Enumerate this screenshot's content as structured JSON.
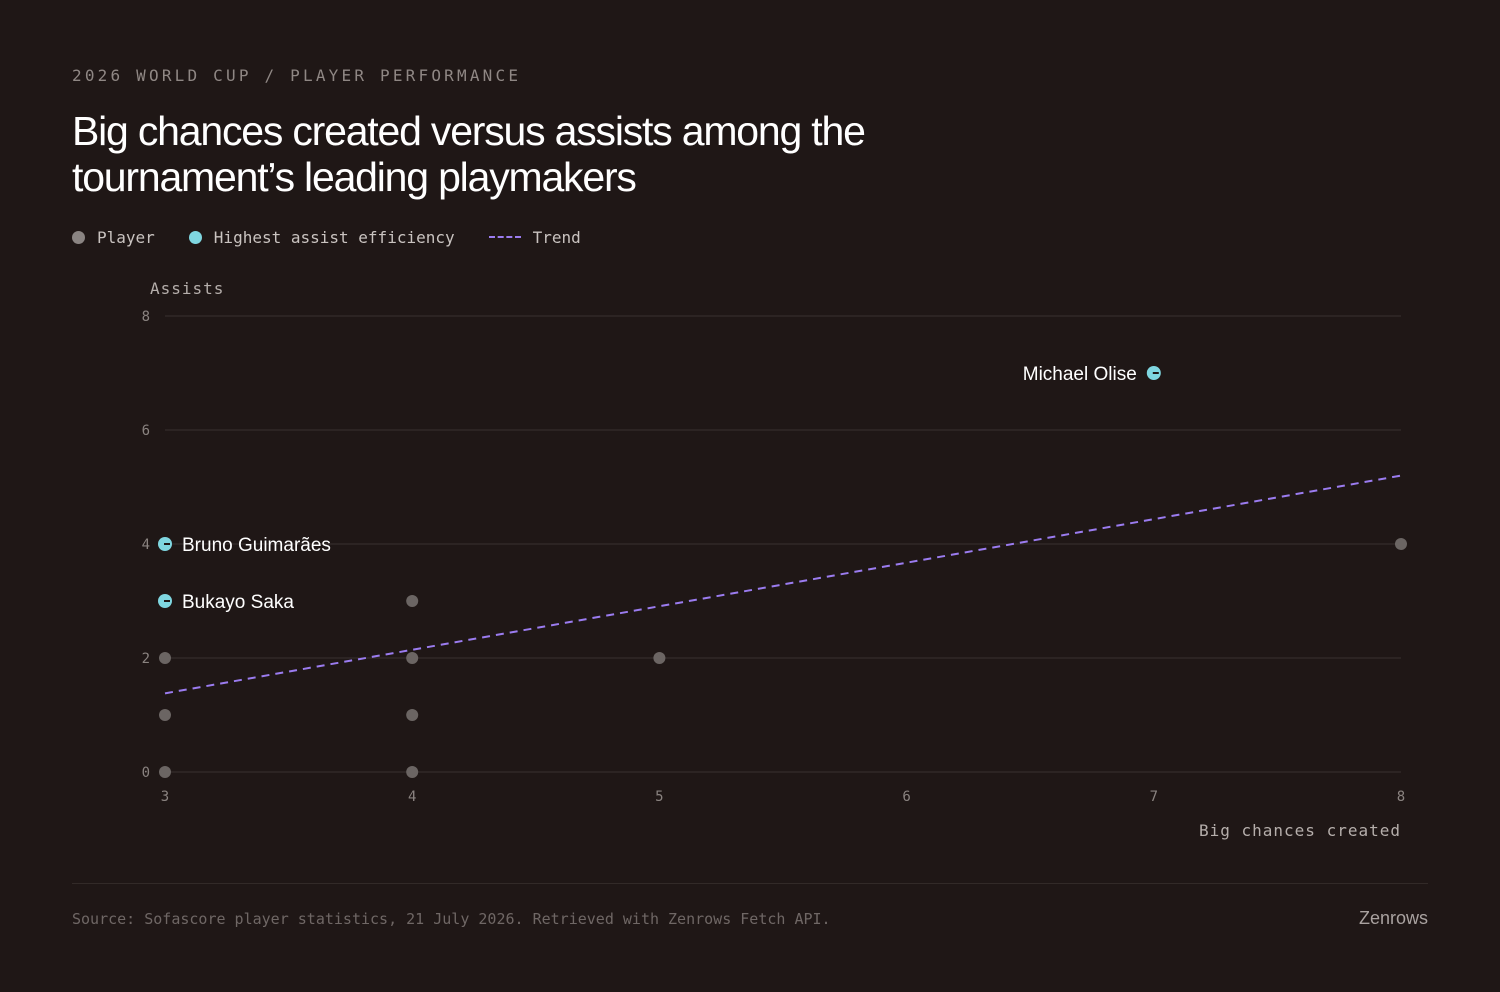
{
  "header": {
    "kicker": "2026 WORLD CUP / PLAYER PERFORMANCE",
    "title": "Big chances created versus assists among the tournament’s leading playmakers"
  },
  "legend": {
    "player": "Player",
    "highlight": "Highest assist efficiency",
    "trend": "Trend"
  },
  "colors": {
    "background": "#1f1716",
    "player": "#6b6563",
    "highlight": "#7fd6e0",
    "trend": "#9b7cf0",
    "grid": "#383030"
  },
  "chart_data": {
    "type": "scatter",
    "xlabel": "Big chances created",
    "ylabel": "Assists",
    "xlim": [
      3,
      8
    ],
    "ylim": [
      0,
      8
    ],
    "xticks": [
      3,
      4,
      5,
      6,
      7,
      8
    ],
    "yticks": [
      0,
      2,
      4,
      6,
      8
    ],
    "grid": "horizontal",
    "legend_position": "top-left",
    "points": [
      {
        "x": 3,
        "y": 4,
        "highlight": true,
        "label": "Bruno Guimarães"
      },
      {
        "x": 3,
        "y": 3,
        "highlight": true,
        "label": "Bukayo Saka"
      },
      {
        "x": 7,
        "y": 7,
        "highlight": true,
        "label": "Michael Olise"
      },
      {
        "x": 3,
        "y": 2,
        "highlight": false
      },
      {
        "x": 3,
        "y": 1,
        "highlight": false
      },
      {
        "x": 3,
        "y": 0,
        "highlight": false
      },
      {
        "x": 4,
        "y": 3,
        "highlight": false
      },
      {
        "x": 4,
        "y": 2,
        "highlight": false
      },
      {
        "x": 4,
        "y": 1,
        "highlight": false
      },
      {
        "x": 4,
        "y": 0,
        "highlight": false
      },
      {
        "x": 5,
        "y": 2,
        "highlight": false
      },
      {
        "x": 8,
        "y": 4,
        "highlight": false
      }
    ],
    "trend": {
      "x": [
        3,
        8
      ],
      "y": [
        1.38,
        5.2
      ]
    }
  },
  "footer": {
    "source": "Source: Sofascore player statistics, 21 July 2026. Retrieved with Zenrows Fetch API.",
    "brand": "Zenrows"
  }
}
